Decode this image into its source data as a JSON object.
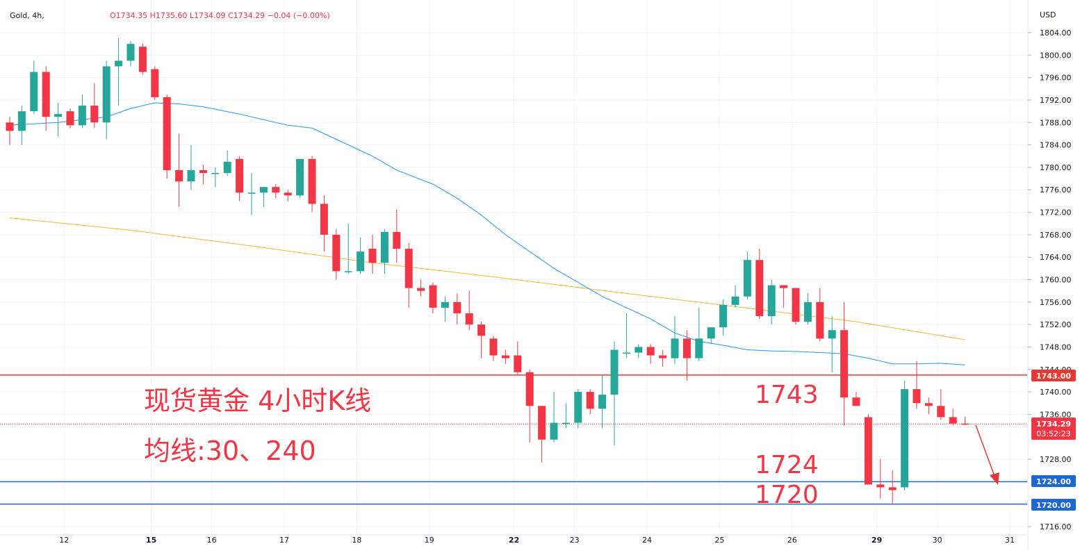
{
  "header": {
    "symbol": "Gold, 4h,",
    "ohlc_line": "O1734.35 H1735.60 L1734.09 C1734.29 −0.04 (−0.00%)"
  },
  "currency": "USD",
  "colors": {
    "up": "#26a69a",
    "down": "#f23645",
    "ma30": "#2196f3",
    "ma240": "#f5b82e",
    "red_line": "#e53935",
    "blue_line": "#1e66d0",
    "annotation": "#f23645"
  },
  "annotations": {
    "title": "现货黄金 4小时K线",
    "ma_label": "均线:30、240",
    "level_1743": "1743",
    "level_1724": "1724",
    "level_1720": "1720"
  },
  "price_tags": {
    "level_1743": "1743.00",
    "current_price": "1734.29",
    "countdown": "03:52:23",
    "level_1724": "1724.00",
    "level_1720": "1720.00"
  },
  "chart_data": {
    "type": "candlestick",
    "title": "",
    "xlabel": "",
    "ylabel": "",
    "ylim": [
      1714,
      1806
    ],
    "y_ticks": [
      1804,
      1800,
      1796,
      1792,
      1788,
      1784,
      1780,
      1776,
      1772,
      1768,
      1764,
      1760,
      1756,
      1752,
      1748,
      1744,
      1740,
      1736,
      1728,
      1716
    ],
    "x_ticks": [
      {
        "label": "12",
        "index": 4.5
      },
      {
        "label": "15",
        "index": 11.7
      },
      {
        "label": "16",
        "index": 16.7
      },
      {
        "label": "17",
        "index": 22.7
      },
      {
        "label": "18",
        "index": 28.7
      },
      {
        "label": "19",
        "index": 34.7
      },
      {
        "label": "22",
        "index": 41.7
      },
      {
        "label": "23",
        "index": 46.7
      },
      {
        "label": "24",
        "index": 52.7
      },
      {
        "label": "25",
        "index": 58.7
      },
      {
        "label": "26",
        "index": 64.7
      },
      {
        "label": "29",
        "index": 71.7
      },
      {
        "label": "30",
        "index": 76.7
      },
      {
        "label": "31",
        "index": 82.7
      }
    ],
    "horizontal_levels": [
      1743,
      1724,
      1720
    ],
    "current_price": 1734.29,
    "candles": [
      {
        "o": 1788,
        "h": 1789,
        "l": 1784,
        "c": 1786.5
      },
      {
        "o": 1786.5,
        "h": 1791,
        "l": 1784,
        "c": 1790
      },
      {
        "o": 1790,
        "h": 1799,
        "l": 1789.5,
        "c": 1797
      },
      {
        "o": 1797,
        "h": 1798,
        "l": 1786.5,
        "c": 1789
      },
      {
        "o": 1789,
        "h": 1791.5,
        "l": 1785.5,
        "c": 1789.5
      },
      {
        "o": 1790,
        "h": 1790.5,
        "l": 1787,
        "c": 1787.5
      },
      {
        "o": 1787.5,
        "h": 1793,
        "l": 1787,
        "c": 1791
      },
      {
        "o": 1791,
        "h": 1795,
        "l": 1787,
        "c": 1788
      },
      {
        "o": 1788,
        "h": 1799,
        "l": 1785,
        "c": 1798
      },
      {
        "o": 1798,
        "h": 1803,
        "l": 1791,
        "c": 1799
      },
      {
        "o": 1799,
        "h": 1802.5,
        "l": 1798,
        "c": 1802
      },
      {
        "o": 1801.5,
        "h": 1802,
        "l": 1796.5,
        "c": 1797
      },
      {
        "o": 1797.5,
        "h": 1798,
        "l": 1792,
        "c": 1792.5
      },
      {
        "o": 1792.5,
        "h": 1793,
        "l": 1778,
        "c": 1779.5
      },
      {
        "o": 1779.5,
        "h": 1786,
        "l": 1773,
        "c": 1777.5
      },
      {
        "o": 1777.5,
        "h": 1784,
        "l": 1776,
        "c": 1779.5
      },
      {
        "o": 1779.5,
        "h": 1780.5,
        "l": 1777,
        "c": 1779
      },
      {
        "o": 1779,
        "h": 1780,
        "l": 1776.5,
        "c": 1779
      },
      {
        "o": 1779,
        "h": 1783,
        "l": 1778.5,
        "c": 1781
      },
      {
        "o": 1781.5,
        "h": 1782,
        "l": 1774,
        "c": 1775.5
      },
      {
        "o": 1775.5,
        "h": 1779,
        "l": 1771.5,
        "c": 1775.5
      },
      {
        "o": 1775.5,
        "h": 1776.5,
        "l": 1773,
        "c": 1776.5
      },
      {
        "o": 1776.5,
        "h": 1777,
        "l": 1774.5,
        "c": 1775.5
      },
      {
        "o": 1775.5,
        "h": 1776,
        "l": 1774,
        "c": 1775
      },
      {
        "o": 1775,
        "h": 1781.5,
        "l": 1774.5,
        "c": 1781.5
      },
      {
        "o": 1781.5,
        "h": 1782,
        "l": 1772,
        "c": 1773.5
      },
      {
        "o": 1773.5,
        "h": 1775,
        "l": 1765,
        "c": 1768
      },
      {
        "o": 1768,
        "h": 1769,
        "l": 1760,
        "c": 1761.5
      },
      {
        "o": 1761.5,
        "h": 1770,
        "l": 1761,
        "c": 1761.5
      },
      {
        "o": 1761.5,
        "h": 1767.5,
        "l": 1761,
        "c": 1765
      },
      {
        "o": 1765.5,
        "h": 1768,
        "l": 1761,
        "c": 1763
      },
      {
        "o": 1763,
        "h": 1769,
        "l": 1761,
        "c": 1768.5
      },
      {
        "o": 1768.5,
        "h": 1772.5,
        "l": 1763,
        "c": 1765.5
      },
      {
        "o": 1765.5,
        "h": 1766.5,
        "l": 1755,
        "c": 1758.5
      },
      {
        "o": 1758.5,
        "h": 1760,
        "l": 1757,
        "c": 1758
      },
      {
        "o": 1759,
        "h": 1759.5,
        "l": 1754,
        "c": 1755
      },
      {
        "o": 1755,
        "h": 1757,
        "l": 1752.5,
        "c": 1756
      },
      {
        "o": 1756,
        "h": 1757.5,
        "l": 1752,
        "c": 1754
      },
      {
        "o": 1754,
        "h": 1758,
        "l": 1751,
        "c": 1752
      },
      {
        "o": 1752,
        "h": 1752.5,
        "l": 1746,
        "c": 1750
      },
      {
        "o": 1749.5,
        "h": 1750,
        "l": 1745.5,
        "c": 1746.5
      },
      {
        "o": 1746.5,
        "h": 1747.5,
        "l": 1745,
        "c": 1746
      },
      {
        "o": 1746.5,
        "h": 1749,
        "l": 1743,
        "c": 1743.5
      },
      {
        "o": 1743.5,
        "h": 1744,
        "l": 1731,
        "c": 1737.5
      },
      {
        "o": 1737.5,
        "h": 1737.5,
        "l": 1727.5,
        "c": 1731.5
      },
      {
        "o": 1731.5,
        "h": 1740,
        "l": 1731,
        "c": 1734.5
      },
      {
        "o": 1734.5,
        "h": 1738,
        "l": 1733.5,
        "c": 1734.5
      },
      {
        "o": 1734.5,
        "h": 1740.5,
        "l": 1733.5,
        "c": 1740
      },
      {
        "o": 1740,
        "h": 1740.5,
        "l": 1736,
        "c": 1737
      },
      {
        "o": 1737,
        "h": 1743,
        "l": 1733.5,
        "c": 1739.5
      },
      {
        "o": 1739.5,
        "h": 1749,
        "l": 1730.5,
        "c": 1747.5
      },
      {
        "o": 1747,
        "h": 1754,
        "l": 1746,
        "c": 1747
      },
      {
        "o": 1747,
        "h": 1748.5,
        "l": 1746,
        "c": 1748
      },
      {
        "o": 1748,
        "h": 1748.5,
        "l": 1745,
        "c": 1746.5
      },
      {
        "o": 1746.5,
        "h": 1747.5,
        "l": 1744.5,
        "c": 1746
      },
      {
        "o": 1746,
        "h": 1753.5,
        "l": 1745,
        "c": 1749.5
      },
      {
        "o": 1749.5,
        "h": 1751,
        "l": 1742,
        "c": 1746
      },
      {
        "o": 1746,
        "h": 1755,
        "l": 1745.5,
        "c": 1749.5
      },
      {
        "o": 1749.5,
        "h": 1751.5,
        "l": 1748.5,
        "c": 1751.5
      },
      {
        "o": 1751.5,
        "h": 1756.5,
        "l": 1750,
        "c": 1755.5
      },
      {
        "o": 1755.5,
        "h": 1759,
        "l": 1755,
        "c": 1757
      },
      {
        "o": 1757,
        "h": 1765,
        "l": 1756.5,
        "c": 1763.5
      },
      {
        "o": 1763.5,
        "h": 1765.5,
        "l": 1753,
        "c": 1753.5
      },
      {
        "o": 1753.5,
        "h": 1760,
        "l": 1752,
        "c": 1759
      },
      {
        "o": 1759,
        "h": 1759,
        "l": 1755,
        "c": 1758.5
      },
      {
        "o": 1758.5,
        "h": 1758.5,
        "l": 1752,
        "c": 1752.5
      },
      {
        "o": 1752.5,
        "h": 1757.5,
        "l": 1752,
        "c": 1756
      },
      {
        "o": 1756,
        "h": 1758.5,
        "l": 1749,
        "c": 1749.5
      },
      {
        "o": 1749.5,
        "h": 1753.5,
        "l": 1743.5,
        "c": 1751
      },
      {
        "o": 1751,
        "h": 1756,
        "l": 1734,
        "c": 1739
      },
      {
        "o": 1739,
        "h": 1740,
        "l": 1737.5,
        "c": 1737.5
      },
      {
        "o": 1735.5,
        "h": 1736,
        "l": 1723.5,
        "c": 1723.5
      },
      {
        "o": 1723.5,
        "h": 1728,
        "l": 1721,
        "c": 1723
      },
      {
        "o": 1723,
        "h": 1726,
        "l": 1720,
        "c": 1722.5
      },
      {
        "o": 1723,
        "h": 1742,
        "l": 1722.5,
        "c": 1740.5
      },
      {
        "o": 1740.5,
        "h": 1745.5,
        "l": 1737,
        "c": 1738
      },
      {
        "o": 1738,
        "h": 1739,
        "l": 1736,
        "c": 1737.5
      },
      {
        "o": 1737.5,
        "h": 1740.5,
        "l": 1735,
        "c": 1735.5
      },
      {
        "o": 1735.5,
        "h": 1737,
        "l": 1734,
        "c": 1734.35
      },
      {
        "o": 1734.35,
        "h": 1735.6,
        "l": 1734.09,
        "c": 1734.29
      }
    ],
    "ma30": [
      {
        "i": 0,
        "v": 1787.5
      },
      {
        "i": 4,
        "v": 1788
      },
      {
        "i": 8,
        "v": 1789
      },
      {
        "i": 10,
        "v": 1790.5
      },
      {
        "i": 12,
        "v": 1791.5
      },
      {
        "i": 14,
        "v": 1791.3
      },
      {
        "i": 16,
        "v": 1790.8
      },
      {
        "i": 19,
        "v": 1789.5
      },
      {
        "i": 23,
        "v": 1787.5
      },
      {
        "i": 25,
        "v": 1787
      },
      {
        "i": 27,
        "v": 1785
      },
      {
        "i": 30,
        "v": 1782
      },
      {
        "i": 32,
        "v": 1779.5
      },
      {
        "i": 35,
        "v": 1777
      },
      {
        "i": 37,
        "v": 1774.5
      },
      {
        "i": 39,
        "v": 1771.5
      },
      {
        "i": 41,
        "v": 1768
      },
      {
        "i": 43,
        "v": 1765
      },
      {
        "i": 45,
        "v": 1762
      },
      {
        "i": 47,
        "v": 1759.5
      },
      {
        "i": 49,
        "v": 1757
      },
      {
        "i": 51,
        "v": 1755
      },
      {
        "i": 53,
        "v": 1753
      },
      {
        "i": 55,
        "v": 1750.5
      },
      {
        "i": 57,
        "v": 1749
      },
      {
        "i": 59,
        "v": 1748.3
      },
      {
        "i": 61,
        "v": 1747.5
      },
      {
        "i": 63,
        "v": 1747.3
      },
      {
        "i": 65,
        "v": 1747.2
      },
      {
        "i": 67,
        "v": 1747
      },
      {
        "i": 69,
        "v": 1746.8
      },
      {
        "i": 71,
        "v": 1746
      },
      {
        "i": 73,
        "v": 1745
      },
      {
        "i": 75,
        "v": 1745
      },
      {
        "i": 77,
        "v": 1745.1
      },
      {
        "i": 79,
        "v": 1744.8
      }
    ],
    "ma240": [
      {
        "i": 0,
        "v": 1771
      },
      {
        "i": 10,
        "v": 1768.8
      },
      {
        "i": 20,
        "v": 1766
      },
      {
        "i": 30,
        "v": 1763
      },
      {
        "i": 40,
        "v": 1760.5
      },
      {
        "i": 50,
        "v": 1757.8
      },
      {
        "i": 60,
        "v": 1755.2
      },
      {
        "i": 70,
        "v": 1752.5
      },
      {
        "i": 79,
        "v": 1749.3
      }
    ]
  }
}
